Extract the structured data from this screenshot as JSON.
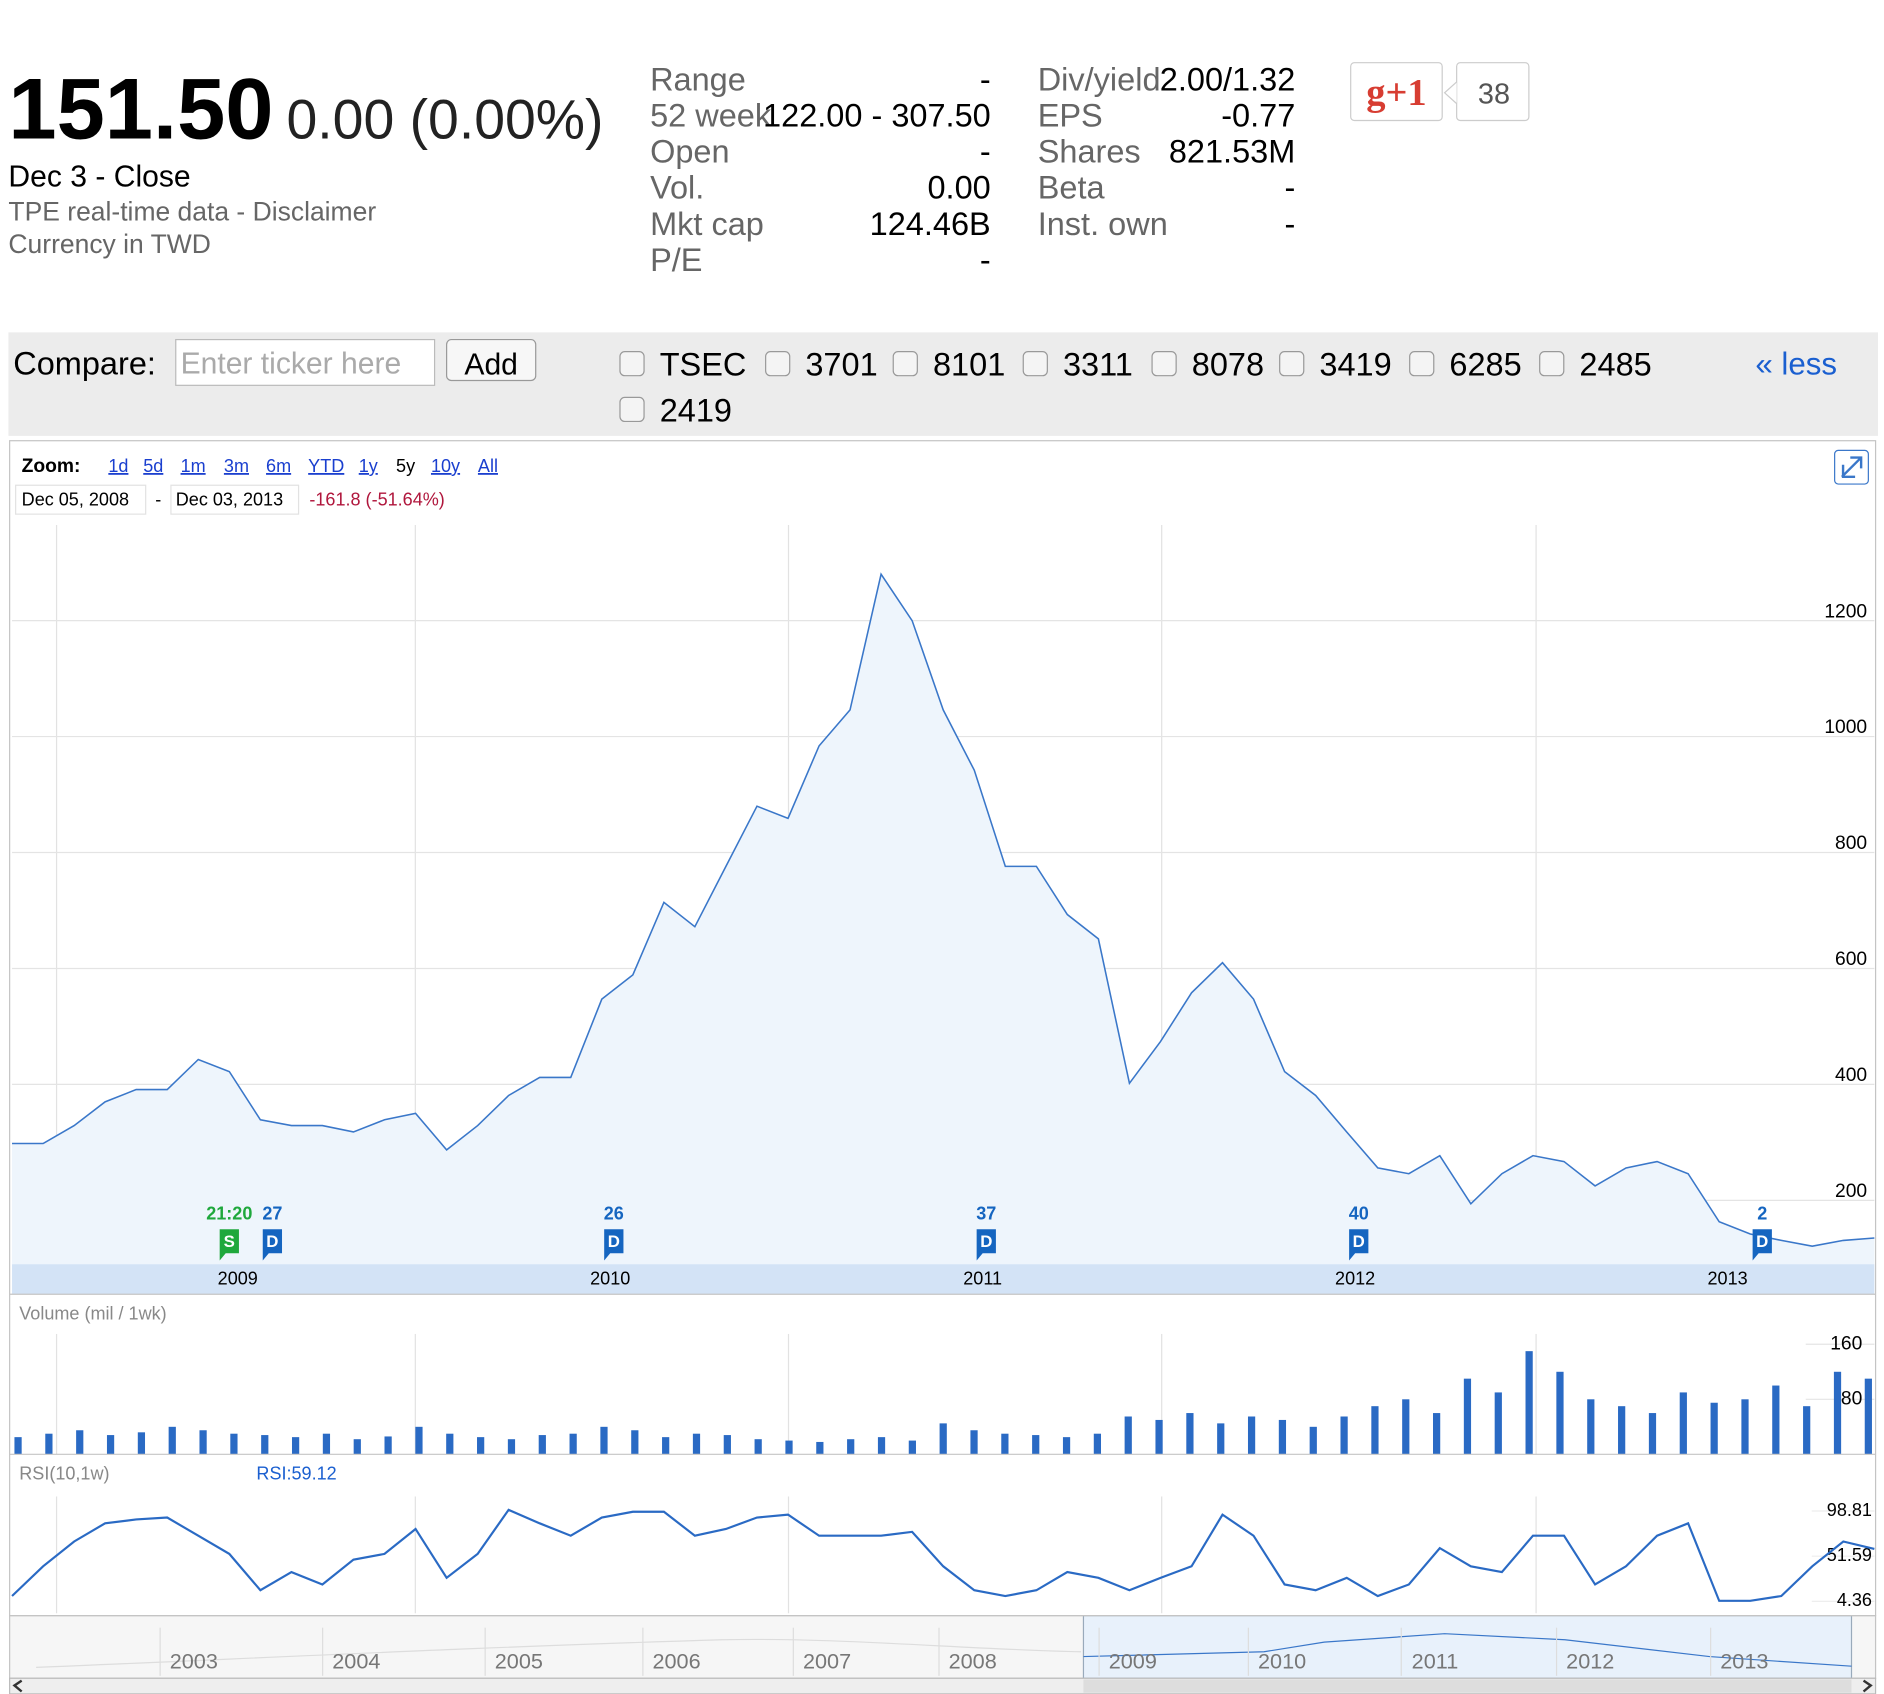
{
  "quote": {
    "price": "151.50",
    "change": "0.00 (0.00%)",
    "date": "Dec 3 - Close",
    "source": "TPE real-time data - Disclaimer",
    "currency": "Currency in TWD"
  },
  "stats": [
    [
      {
        "label": "Range",
        "value": "-"
      },
      {
        "label": "52 week",
        "value": "122.00 - 307.50"
      },
      {
        "label": "Open",
        "value": "-"
      },
      {
        "label": "Vol.",
        "value": "0.00"
      },
      {
        "label": "Mkt cap",
        "value": "124.46B"
      },
      {
        "label": "P/E",
        "value": "-"
      }
    ],
    [
      {
        "label": "Div/yield",
        "value": "2.00/1.32"
      },
      {
        "label": "EPS",
        "value": "-0.77"
      },
      {
        "label": "Shares",
        "value": "821.53M"
      },
      {
        "label": "Beta",
        "value": "-"
      },
      {
        "label": "Inst. own",
        "value": "-"
      }
    ]
  ],
  "social": {
    "button": "g+1",
    "count": "38"
  },
  "compare": {
    "label": "Compare:",
    "placeholder": "Enter ticker here",
    "button": "Add",
    "tickers": [
      "TSEC",
      "3701",
      "8101",
      "3311",
      "8078",
      "3419",
      "6285",
      "2485",
      "2419"
    ],
    "less": "« less"
  },
  "zoom": {
    "label": "Zoom:",
    "options": [
      "1d",
      "5d",
      "1m",
      "3m",
      "6m",
      "YTD",
      "1y",
      "5y",
      "10y",
      "All"
    ],
    "active": 7,
    "start": "Dec 05, 2008",
    "separator": "-",
    "end": "Dec 03, 2013",
    "change": "-161.8 (-51.64%)"
  },
  "chart_data": [
    {
      "type": "area",
      "color": "#3a77c9",
      "fill": "#eef5fc",
      "grid": true,
      "categories": [
        null,
        null,
        null,
        null,
        null,
        null,
        null,
        "2009",
        null,
        null,
        null,
        null,
        null,
        null,
        null,
        null,
        null,
        null,
        null,
        "2010",
        null,
        null,
        null,
        null,
        null,
        null,
        null,
        null,
        null,
        null,
        null,
        "2011",
        null,
        null,
        null,
        null,
        null,
        null,
        null,
        null,
        null,
        null,
        null,
        "2012",
        null,
        null,
        null,
        null,
        null,
        null,
        null,
        null,
        null,
        null,
        null,
        "2013",
        null,
        null,
        null,
        null,
        null
      ],
      "values": [
        298,
        298,
        329,
        370,
        391,
        391,
        443,
        422,
        339,
        329,
        329,
        318,
        339,
        350,
        287,
        329,
        381,
        412,
        412,
        547,
        589,
        714,
        672,
        776,
        880,
        859,
        984,
        1046,
        1280,
        1200,
        1046,
        942,
        776,
        776,
        693,
        651,
        402,
        474,
        558,
        610,
        547,
        422,
        381,
        318,
        256,
        246,
        277,
        194,
        246,
        277,
        267,
        225,
        256,
        267,
        246,
        163,
        142,
        131,
        121,
        131,
        135
      ],
      "events": [
        null,
        null,
        null,
        null,
        null,
        null,
        null,
        {
          "text": "21:20",
          "flag": "S",
          "color": "#1fa83c"
        },
        {
          "text": "27",
          "flag": "D",
          "color": "#1565c0"
        },
        null,
        null,
        null,
        null,
        null,
        null,
        null,
        null,
        null,
        null,
        {
          "text": "26",
          "flag": "D",
          "color": "#1565c0"
        },
        null,
        null,
        null,
        null,
        null,
        null,
        null,
        null,
        null,
        null,
        null,
        {
          "text": "37",
          "flag": "D",
          "color": "#1565c0"
        },
        null,
        null,
        null,
        null,
        null,
        null,
        null,
        null,
        null,
        null,
        null,
        {
          "text": "40",
          "flag": "D",
          "color": "#1565c0"
        },
        null,
        null,
        null,
        null,
        null,
        null,
        null,
        null,
        null,
        null,
        null,
        null,
        {
          "text": "2",
          "flag": "D",
          "color": "#1565c0"
        },
        null,
        null,
        null,
        null
      ],
      "ylim": [
        90,
        1365
      ],
      "yticks": [
        200,
        400,
        600,
        800,
        1000,
        1200
      ]
    },
    {
      "type": "bar",
      "title": "Volume (mil / 1wk)",
      "color": "#2a6ac4",
      "grid": true,
      "values": [
        25,
        30,
        35,
        28,
        32,
        40,
        35,
        30,
        28,
        25,
        30,
        22,
        26,
        40,
        30,
        25,
        22,
        28,
        30,
        40,
        35,
        25,
        30,
        28,
        22,
        20,
        18,
        22,
        25,
        20,
        45,
        35,
        30,
        28,
        25,
        30,
        55,
        50,
        60,
        45,
        55,
        50,
        40,
        55,
        70,
        80,
        60,
        110,
        90,
        150,
        120,
        80,
        70,
        60,
        90,
        75,
        80,
        100,
        70,
        120,
        110
      ],
      "ylim": [
        0,
        175
      ],
      "yticks": [
        80,
        160
      ]
    },
    {
      "type": "line",
      "title": "RSI(10,1w)",
      "legend": "RSI:59.12",
      "color": "#2a6ac4",
      "grid": true,
      "values": [
        10,
        41,
        67,
        86,
        90,
        92,
        73,
        54,
        16,
        35,
        22,
        48,
        54,
        80,
        29,
        54,
        100,
        86,
        73,
        92,
        98,
        98,
        73,
        80,
        92,
        95,
        73,
        73,
        73,
        77,
        41,
        16,
        10,
        16,
        35,
        29,
        16,
        29,
        41,
        95,
        73,
        22,
        16,
        29,
        10,
        22,
        60,
        41,
        35,
        73,
        73,
        22,
        41,
        73,
        86,
        5,
        5,
        10,
        41,
        67,
        59.12
      ],
      "ylim": [
        -8,
        114
      ],
      "yticks": [
        4.36,
        51.59,
        98.81
      ]
    }
  ],
  "navigator": {
    "years": [
      "2003",
      "2004",
      "2005",
      "2006",
      "2007",
      "2008",
      "2009",
      "2010",
      "2011",
      "2012",
      "2013"
    ]
  }
}
